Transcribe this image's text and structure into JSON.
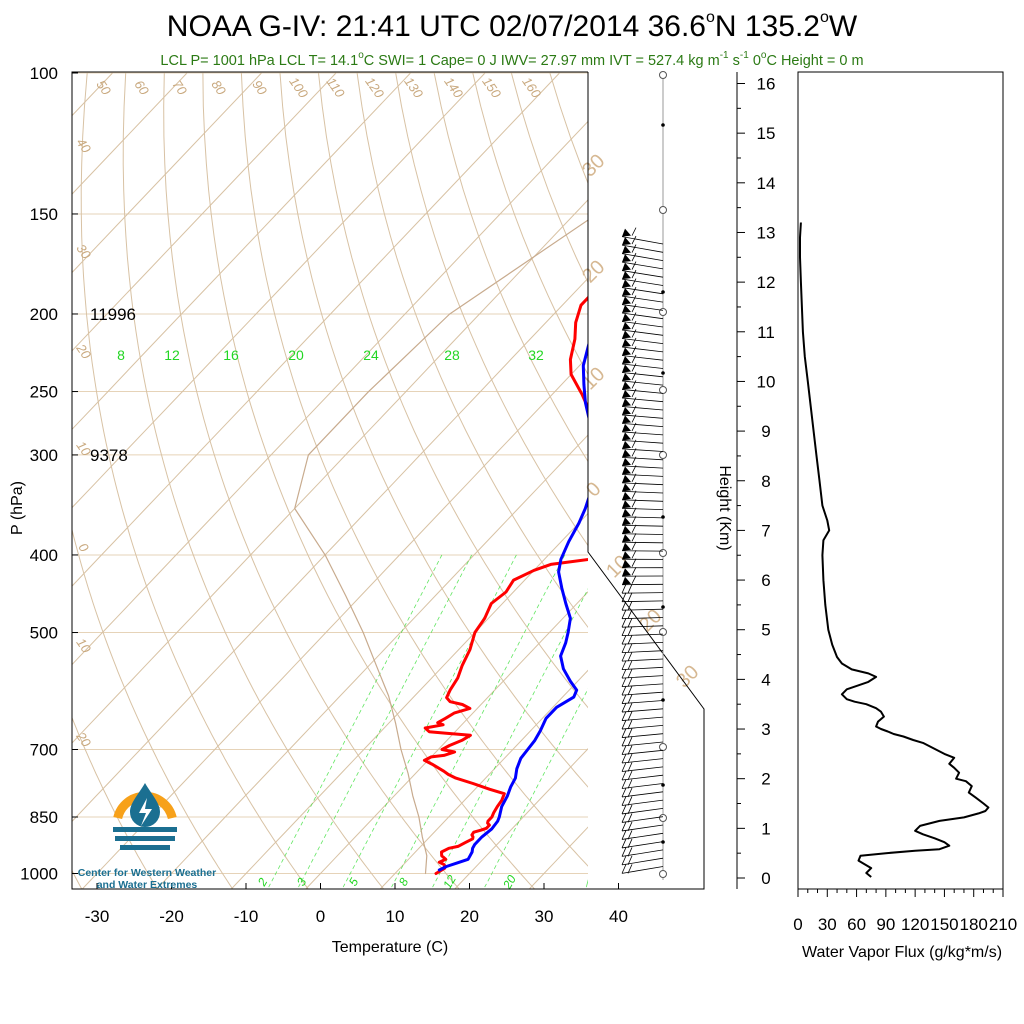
{
  "title": {
    "prefix": "NOAA G-IV: 21:41 UTC 02/07/2014  36.6",
    "lat_suffix": "N 135.2",
    "lon_suffix": "W",
    "degree": "o"
  },
  "subtitle": {
    "a": "LCL P= 1001 hPa  LCL T= 14.1",
    "b": "C  SWI= 1  Cape= 0 J  IWV= 27.97 mm  IVT = 527.4 kg m",
    "c": "-1",
    "d": " s",
    "e": "-1",
    "f": "  0",
    "g": "C Height = 0 m"
  },
  "logo": {
    "line1": "Center for Western Weather",
    "line2": "and Water Extremes",
    "colors": {
      "ring": "#f7a11a",
      "wave": "#1b6f91",
      "drop": "#1b6f91"
    }
  },
  "colors": {
    "temperature": "#ff0000",
    "dewpoint": "#0000ff",
    "dry_adiabat": "#d8c2a4",
    "isotherm": "#d8c2a4",
    "mixing_ratio": "#39e039",
    "parcel": "#c8ab8e",
    "frame": "#000000"
  },
  "chart_data": [
    {
      "type": "line",
      "name": "skew-t",
      "xlabel": "Temperature (C)",
      "ylabel": "P (hPa)",
      "x_ticks": [
        "-30",
        "-20",
        "-10",
        "0",
        "10",
        "20",
        "30",
        "40"
      ],
      "x_tick_values": [
        -30,
        -20,
        -10,
        0,
        10,
        20,
        30,
        40
      ],
      "p_ticks": [
        "100",
        "150",
        "200",
        "250",
        "300",
        "400",
        "500",
        "700",
        "850",
        "1000"
      ],
      "p_tick_values": [
        100,
        150,
        200,
        250,
        300,
        400,
        500,
        700,
        850,
        1000
      ],
      "height_annotations": [
        {
          "text": "11996",
          "p": 200
        },
        {
          "text": "9378",
          "p": 300
        }
      ],
      "dry_adiabat_labels": [
        "50",
        "60",
        "70",
        "80",
        "90",
        "100",
        "110",
        "120",
        "130",
        "140",
        "150",
        "160",
        "40",
        "30",
        "20",
        "10",
        "0",
        "10",
        "20"
      ],
      "isotherm_labels": [
        "30",
        "20",
        "10",
        "0",
        "10",
        "20",
        "30"
      ],
      "mixing_ratio_labels_upper": [
        "8",
        "12",
        "16",
        "20",
        "24",
        "28",
        "32"
      ],
      "mixing_ratio_labels_lower": [
        "2",
        "3",
        "5",
        "8",
        "12",
        "20"
      ],
      "series": [
        {
          "name": "temperature",
          "points": [
            [
              15.5,
              1000
            ],
            [
              16,
              985
            ],
            [
              15.5,
              975
            ],
            [
              14.5,
              968
            ],
            [
              15,
              960
            ],
            [
              14,
              950
            ],
            [
              13.5,
              940
            ],
            [
              14,
              930
            ],
            [
              15,
              925
            ],
            [
              15.5,
              915
            ],
            [
              16,
              905
            ],
            [
              15.8,
              900
            ],
            [
              15.4,
              895
            ],
            [
              15.3,
              888
            ],
            [
              16,
              883
            ],
            [
              16.5,
              878
            ],
            [
              16.5,
              870
            ],
            [
              16,
              865
            ],
            [
              15.8,
              860
            ],
            [
              15.8,
              850
            ],
            [
              15.5,
              840
            ],
            [
              15.2,
              825
            ],
            [
              15,
              810
            ],
            [
              14.5,
              795
            ],
            [
              12,
              785
            ],
            [
              9,
              772
            ],
            [
              6,
              760
            ],
            [
              4.5,
              752
            ],
            [
              3.5,
              745
            ],
            [
              1,
              730
            ],
            [
              -0.5,
              722
            ],
            [
              0,
              715
            ],
            [
              1.5,
              712
            ],
            [
              2.5,
              705
            ],
            [
              0.5,
              700
            ],
            [
              1,
              692
            ],
            [
              2,
              682
            ],
            [
              2.5,
              672
            ],
            [
              -1,
              668
            ],
            [
              -3.5,
              665
            ],
            [
              -4.5,
              658
            ],
            [
              -2.5,
              652
            ],
            [
              -3.5,
              648
            ],
            [
              -3,
              640
            ],
            [
              -2.5,
              630
            ],
            [
              -1,
              622
            ],
            [
              -2.5,
              615
            ],
            [
              -4.5,
              610
            ],
            [
              -5.5,
              603
            ],
            [
              -6,
              590
            ],
            [
              -6.5,
              570
            ],
            [
              -7.5,
              550
            ],
            [
              -8.5,
              525
            ],
            [
              -10,
              500
            ],
            [
              -10.5,
              480
            ],
            [
              -11.5,
              460
            ],
            [
              -11,
              445
            ],
            [
              -11.5,
              430
            ],
            [
              -10,
              418
            ],
            [
              -8.5,
              411
            ],
            [
              -4,
              405
            ],
            [
              -4.8,
              396
            ],
            [
              -6,
              385
            ],
            [
              -6.5,
              360
            ],
            [
              -7,
              345
            ],
            [
              -8.5,
              330
            ],
            [
              -11,
              312
            ],
            [
              -14,
              300
            ],
            [
              -18,
              285
            ],
            [
              -22,
              268
            ],
            [
              -26,
              252
            ],
            [
              -30,
              238
            ],
            [
              -32,
              228
            ],
            [
              -34,
              215
            ],
            [
              -36,
              205
            ],
            [
              -37.5,
              195
            ],
            [
              -37.5,
              188
            ],
            [
              -36,
              182
            ],
            [
              -33,
              178
            ],
            [
              -29,
              174
            ],
            [
              -25,
              170
            ],
            [
              -20,
              167
            ],
            [
              -16,
              165
            ],
            [
              -12,
              164.5
            ],
            [
              -10,
              164
            ]
          ]
        },
        {
          "name": "dewpoint",
          "points": [
            [
              15.5,
              990
            ],
            [
              16,
              980
            ],
            [
              17,
              970
            ],
            [
              18,
              960
            ],
            [
              17.8,
              950
            ],
            [
              17.6,
              940
            ],
            [
              17.2,
              930
            ],
            [
              17,
              920
            ],
            [
              17,
              900
            ],
            [
              17.3,
              880
            ],
            [
              17.1,
              860
            ],
            [
              16.8,
              850
            ],
            [
              15.8,
              825
            ],
            [
              15.2,
              800
            ],
            [
              14.5,
              780
            ],
            [
              14,
              760
            ],
            [
              13,
              740
            ],
            [
              12.2,
              718
            ],
            [
              12,
              700
            ],
            [
              11.8,
              682
            ],
            [
              11.3,
              663
            ],
            [
              10.5,
              640
            ],
            [
              10.5,
              620
            ],
            [
              11.5,
              602
            ],
            [
              11,
              590
            ],
            [
              9,
              575
            ],
            [
              6.5,
              555
            ],
            [
              4.5,
              535
            ],
            [
              3.5,
              515
            ],
            [
              2.5,
              500
            ],
            [
              1,
              480
            ],
            [
              -1.5,
              460
            ],
            [
              -4,
              440
            ],
            [
              -6.5,
              420
            ],
            [
              -7.8,
              405
            ],
            [
              -9,
              385
            ],
            [
              -10,
              365
            ],
            [
              -11,
              350
            ],
            [
              -12,
              338
            ],
            [
              -13.5,
              325
            ],
            [
              -15.5,
              310
            ],
            [
              -17,
              300
            ],
            [
              -19.5,
              285
            ],
            [
              -22,
              270
            ],
            [
              -24.5,
              258
            ],
            [
              -27,
              245
            ],
            [
              -29.5,
              232
            ],
            [
              -31.5,
              218
            ],
            [
              -32.5,
              205
            ],
            [
              -33,
              196
            ],
            [
              -32.5,
              190
            ],
            [
              -30.5,
              186
            ],
            [
              -27,
              182
            ],
            [
              -21,
              178
            ],
            [
              -14,
              173
            ],
            [
              -6,
              168
            ],
            [
              0,
              166
            ],
            [
              4,
              165
            ],
            [
              6,
              164.5
            ]
          ]
        },
        {
          "name": "parcel",
          "points": [
            [
              14.1,
              1000
            ],
            [
              12,
              950
            ],
            [
              9,
              900
            ],
            [
              6,
              850
            ],
            [
              2.5,
              800
            ],
            [
              -1,
              750
            ],
            [
              -5,
              700
            ],
            [
              -9,
              650
            ],
            [
              -13.5,
              600
            ],
            [
              -19,
              550
            ],
            [
              -25,
              500
            ],
            [
              -32,
              450
            ],
            [
              -40,
              400
            ],
            [
              -50,
              350
            ],
            [
              -55,
              300
            ],
            [
              -55,
              250
            ],
            [
              -54,
              200
            ],
            [
              -47,
              150
            ],
            [
              -41,
              110
            ],
            [
              -39,
              100
            ]
          ]
        }
      ]
    },
    {
      "type": "line",
      "name": "water-vapor-flux",
      "xlabel": "Water Vapor Flux (g/kg*m/s)",
      "ylabel": "Height (Km)",
      "x_ticks": [
        "0",
        "30",
        "60",
        "90",
        "120",
        "150",
        "180",
        "210"
      ],
      "x_tick_values": [
        0,
        30,
        60,
        90,
        120,
        150,
        180,
        210
      ],
      "xlim": [
        0,
        210
      ],
      "y_ticks": [
        "0",
        "1",
        "2",
        "3",
        "4",
        "5",
        "6",
        "7",
        "8",
        "9",
        "10",
        "11",
        "12",
        "13",
        "14",
        "15",
        "16"
      ],
      "y_tick_values": [
        0,
        1,
        2,
        3,
        4,
        5,
        6,
        7,
        8,
        9,
        10,
        11,
        12,
        13,
        14,
        15,
        16
      ],
      "ylim": [
        -0.2,
        16.4
      ],
      "series": [
        {
          "name": "flux",
          "points": [
            [
              75,
              0.02
            ],
            [
              70,
              0.1
            ],
            [
              75,
              0.2
            ],
            [
              68,
              0.28
            ],
            [
              62,
              0.35
            ],
            [
              64,
              0.45
            ],
            [
              90,
              0.5
            ],
            [
              120,
              0.55
            ],
            [
              145,
              0.58
            ],
            [
              155,
              0.65
            ],
            [
              150,
              0.72
            ],
            [
              140,
              0.8
            ],
            [
              128,
              0.88
            ],
            [
              120,
              0.95
            ],
            [
              125,
              1.05
            ],
            [
              145,
              1.15
            ],
            [
              170,
              1.22
            ],
            [
              185,
              1.3
            ],
            [
              192,
              1.35
            ],
            [
              195,
              1.42
            ],
            [
              190,
              1.5
            ],
            [
              182,
              1.62
            ],
            [
              175,
              1.72
            ],
            [
              178,
              1.85
            ],
            [
              172,
              1.95
            ],
            [
              162,
              2.0
            ],
            [
              165,
              2.12
            ],
            [
              160,
              2.22
            ],
            [
              155,
              2.3
            ],
            [
              160,
              2.42
            ],
            [
              150,
              2.5
            ],
            [
              142,
              2.58
            ],
            [
              135,
              2.65
            ],
            [
              128,
              2.72
            ],
            [
              118,
              2.78
            ],
            [
              108,
              2.85
            ],
            [
              98,
              2.9
            ],
            [
              92,
              2.95
            ],
            [
              85,
              3.0
            ],
            [
              80,
              3.05
            ],
            [
              82,
              3.15
            ],
            [
              88,
              3.25
            ],
            [
              85,
              3.35
            ],
            [
              80,
              3.42
            ],
            [
              70,
              3.5
            ],
            [
              58,
              3.55
            ],
            [
              50,
              3.6
            ],
            [
              45,
              3.7
            ],
            [
              50,
              3.8
            ],
            [
              62,
              3.88
            ],
            [
              72,
              3.95
            ],
            [
              80,
              4.05
            ],
            [
              72,
              4.12
            ],
            [
              55,
              4.2
            ],
            [
              45,
              4.32
            ],
            [
              40,
              4.45
            ],
            [
              35,
              4.7
            ],
            [
              31,
              5.0
            ],
            [
              28,
              5.5
            ],
            [
              26,
              6.0
            ],
            [
              25,
              6.5
            ],
            [
              26,
              6.8
            ],
            [
              32,
              7.0
            ],
            [
              30,
              7.2
            ],
            [
              25,
              7.5
            ],
            [
              22,
              8.0
            ],
            [
              19,
              8.5
            ],
            [
              16,
              9.0
            ],
            [
              13,
              9.5
            ],
            [
              10,
              10.0
            ],
            [
              7,
              10.5
            ],
            [
              5,
              11.0
            ],
            [
              4,
              11.5
            ],
            [
              3,
              12.0
            ],
            [
              2,
              12.5
            ],
            [
              2,
              12.9
            ],
            [
              3,
              13.2
            ]
          ]
        }
      ]
    }
  ]
}
